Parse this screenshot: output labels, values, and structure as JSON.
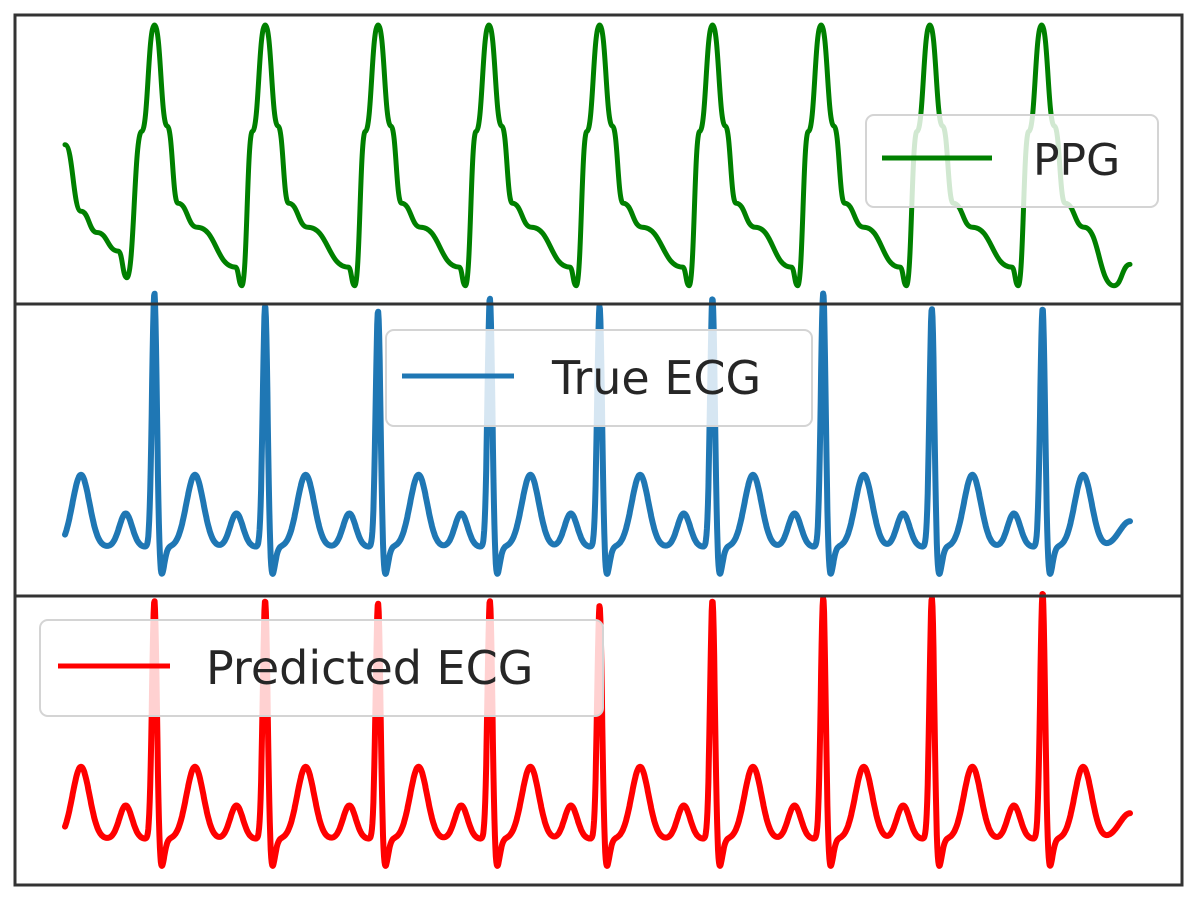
{
  "chart_data": [
    {
      "type": "line",
      "legend_location": "right",
      "grid": false,
      "ticks": false,
      "series": [
        {
          "name": "PPG",
          "color": "#008000",
          "beats": [
            {
              "peak": 0.084,
              "foot": 0.106
            },
            {
              "peak": 0.188,
              "foot": 0.209
            },
            {
              "peak": 0.294,
              "foot": 0.313
            },
            {
              "peak": 0.398,
              "foot": 0.418
            },
            {
              "peak": 0.502,
              "foot": 0.524
            },
            {
              "peak": 0.608,
              "foot": 0.628
            },
            {
              "peak": 0.71,
              "foot": 0.733
            },
            {
              "peak": 0.812,
              "foot": 0.834
            },
            {
              "peak": 0.917,
              "foot": 0.937
            }
          ],
          "start_level": 0.55,
          "end_level": 0.12
        }
      ]
    },
    {
      "type": "line",
      "legend_location": "upper center",
      "grid": false,
      "ticks": false,
      "series": [
        {
          "name": "True ECG",
          "color": "#1f77b4",
          "r_peaks": [
            0.084,
            0.188,
            0.294,
            0.399,
            0.502,
            0.608,
            0.712,
            0.814,
            0.918
          ],
          "r_amplitude": [
            1.0,
            0.95,
            0.93,
            0.98,
            0.95,
            0.98,
            1.0,
            0.94,
            0.94
          ]
        }
      ]
    },
    {
      "type": "line",
      "legend_location": "upper left",
      "grid": false,
      "ticks": false,
      "series": [
        {
          "name": "Predicted ECG",
          "color": "#ff0000",
          "r_peaks": [
            0.084,
            0.188,
            0.294,
            0.399,
            0.502,
            0.608,
            0.712,
            0.814,
            0.918
          ],
          "r_amplitude": [
            0.94,
            0.94,
            0.93,
            0.94,
            0.92,
            0.94,
            0.95,
            0.95,
            0.97
          ]
        }
      ]
    }
  ]
}
